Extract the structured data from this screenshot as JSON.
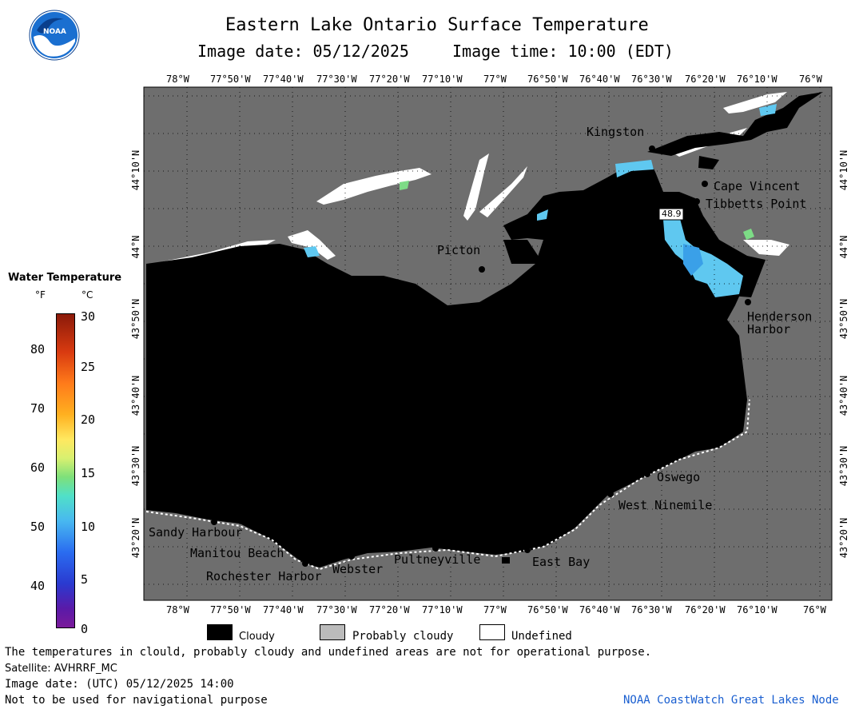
{
  "header": {
    "title": "Eastern Lake Ontario Surface Temperature",
    "image_date_line": "Image date: 05/12/2025",
    "image_time_line": "Image time: 10:00 (EDT)"
  },
  "logo": {
    "text": "NOAA",
    "colors": {
      "outer": "#1a6fd0",
      "inner": "#0a3f8c",
      "wave": "#ffffff"
    }
  },
  "map": {
    "colors": {
      "land": "#6e6e6e",
      "cloud": "#000000",
      "undefined": "#ffffff",
      "water_warm": "#5fc8f0",
      "water_cool": "#3aa0e8",
      "frame": "#000000"
    },
    "lon_labels_top": [
      "78°W",
      "77°50'W",
      "77°40'W",
      "77°30'W",
      "77°20'W",
      "77°10'W",
      "77°W",
      "76°50'W",
      "76°40'W",
      "76°30'W",
      "76°20'W",
      "76°10'W",
      "76°W"
    ],
    "lon_labels_bottom": [
      "78°W",
      "77°50'W",
      "77°40'W",
      "77°30'W",
      "77°20'W",
      "77°10'W",
      "77°W",
      "76°50'W",
      "76°40'W",
      "76°30'W",
      "76°20'W",
      "76°10'W",
      "76°W"
    ],
    "lat_labels_left": [
      "44°10'N",
      "44°N",
      "43°50'N",
      "43°40'N",
      "43°30'N",
      "43°20'N"
    ],
    "lat_labels_right": [
      "44°10'N",
      "44°N",
      "43°50'N",
      "43°40'N",
      "43°30'N",
      "43°20'N"
    ],
    "places": [
      {
        "name": "Kingston"
      },
      {
        "name": "Cape Vincent"
      },
      {
        "name": "Tibbetts Point"
      },
      {
        "name": "Picton"
      },
      {
        "name": "Henderson"
      },
      {
        "name": "Harbor"
      },
      {
        "name": "Oswego"
      },
      {
        "name": "West Ninemile"
      },
      {
        "name": "Sandy Harbour"
      },
      {
        "name": "Manitou Beach"
      },
      {
        "name": "Rochester Harbor"
      },
      {
        "name": "Webster"
      },
      {
        "name": "Pultneyville"
      },
      {
        "name": "East Bay"
      }
    ],
    "buoy_reading": "48.9"
  },
  "colorbar": {
    "title": "Water Temperature",
    "unit_f": "°F",
    "unit_c": "°C",
    "f_ticks": [
      "80",
      "70",
      "60",
      "50",
      "40"
    ],
    "c_ticks": [
      "30",
      "25",
      "20",
      "15",
      "10",
      "5",
      "0"
    ],
    "range_c": [
      0,
      30
    ]
  },
  "legend": {
    "items": [
      {
        "label": "Cloudy",
        "color": "#000000"
      },
      {
        "label": "Probably cloudy",
        "color": "#bbbbbb"
      },
      {
        "label": "Undefined",
        "color": "#ffffff"
      }
    ]
  },
  "footer": {
    "disclaimer": "The temperatures in clould, probably cloudy and undefined areas are not for operational purpose.",
    "satellite": "Satellite: AVHRRF_MC",
    "utc_date": "Image date: (UTC) 05/12/2025  14:00",
    "nav_warning": "Not to be used for navigational purpose",
    "credit": "NOAA CoastWatch Great Lakes Node"
  }
}
